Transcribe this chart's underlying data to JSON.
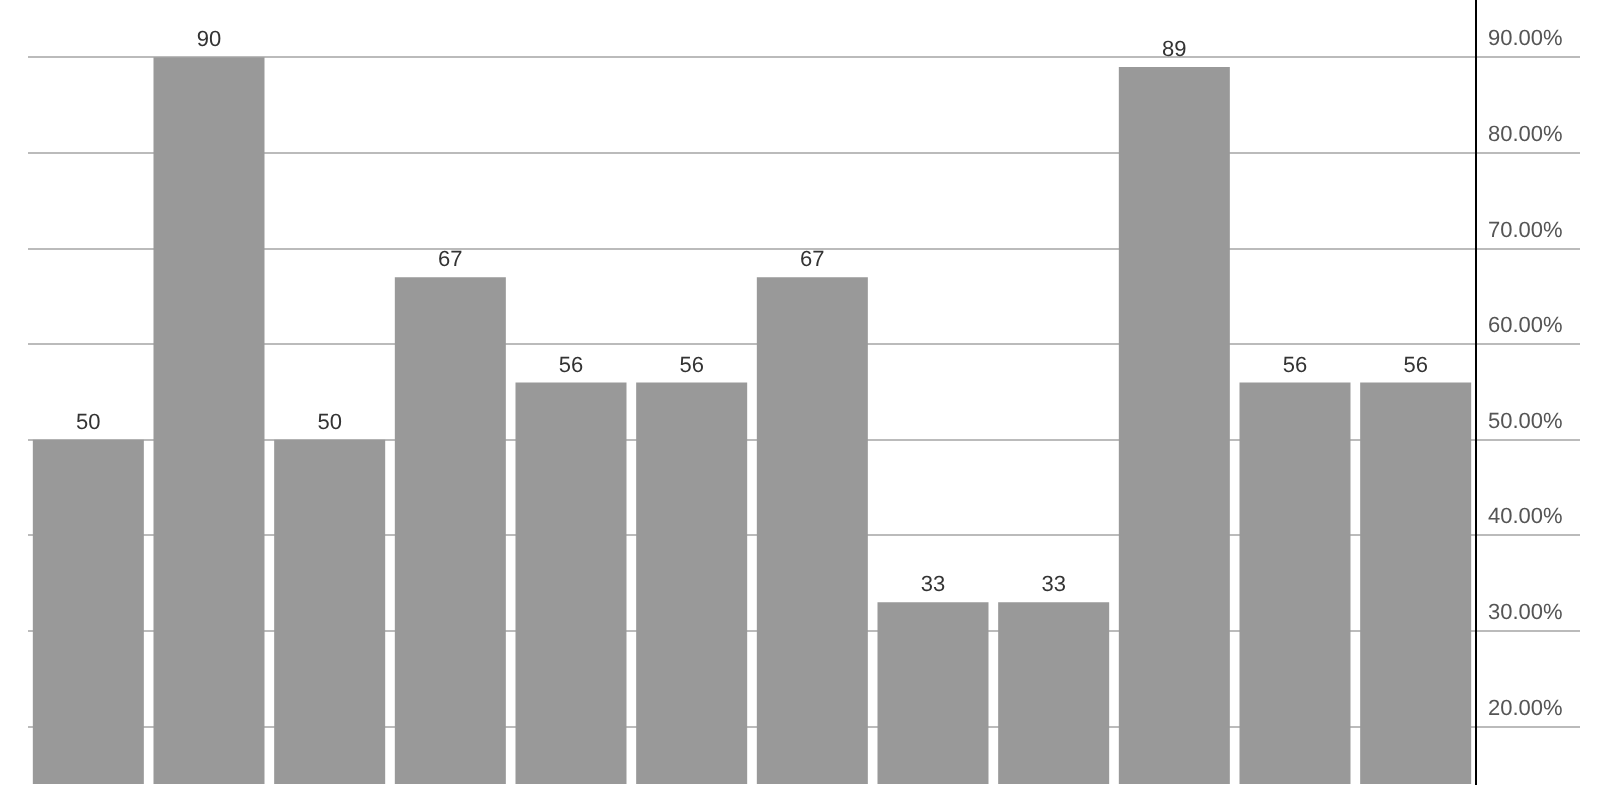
{
  "chart_data": {
    "type": "bar",
    "categories": [
      null,
      null,
      null,
      null,
      null,
      null,
      null,
      null,
      null,
      null,
      null,
      null
    ],
    "values": [
      50,
      90,
      50,
      67,
      56,
      56,
      67,
      33,
      33,
      89,
      56,
      56
    ],
    "color": "#999999",
    "ylim": [
      14,
      96
    ],
    "yticks": [
      {
        "value": 20,
        "label": "20.00%"
      },
      {
        "value": 30,
        "label": "30.00%"
      },
      {
        "value": 40,
        "label": "40.00%"
      },
      {
        "value": 50,
        "label": "50.00%"
      },
      {
        "value": 60,
        "label": "60.00%"
      },
      {
        "value": 70,
        "label": "70.00%"
      },
      {
        "value": 80,
        "label": "80.00%"
      },
      {
        "value": 90,
        "label": "90.00%"
      }
    ],
    "grid": "y",
    "data_labels": true,
    "legend": false
  }
}
